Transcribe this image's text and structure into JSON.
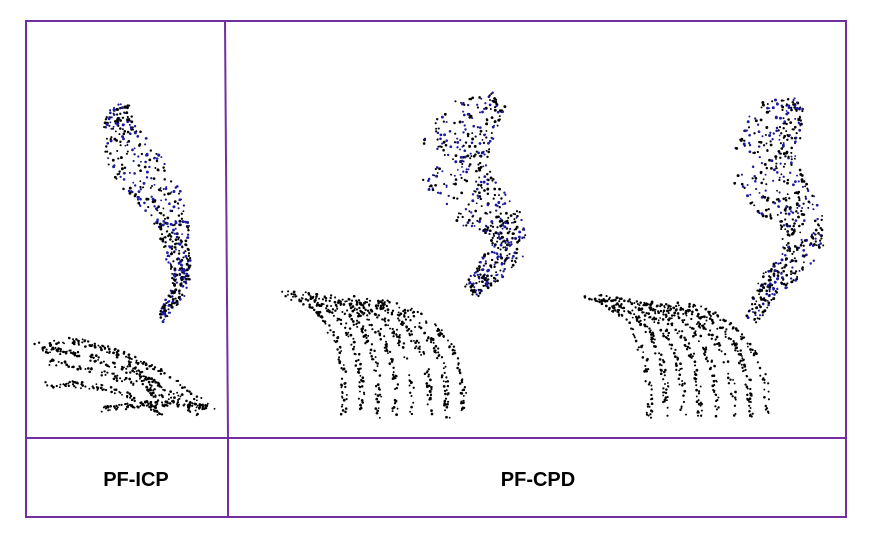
{
  "colors": {
    "border": "#7030a0",
    "target_points": "#000000",
    "source_points": "#1a1aa0",
    "background": "#ffffff"
  },
  "labels": {
    "left": "PF-ICP",
    "right": "PF-CPD"
  }
}
